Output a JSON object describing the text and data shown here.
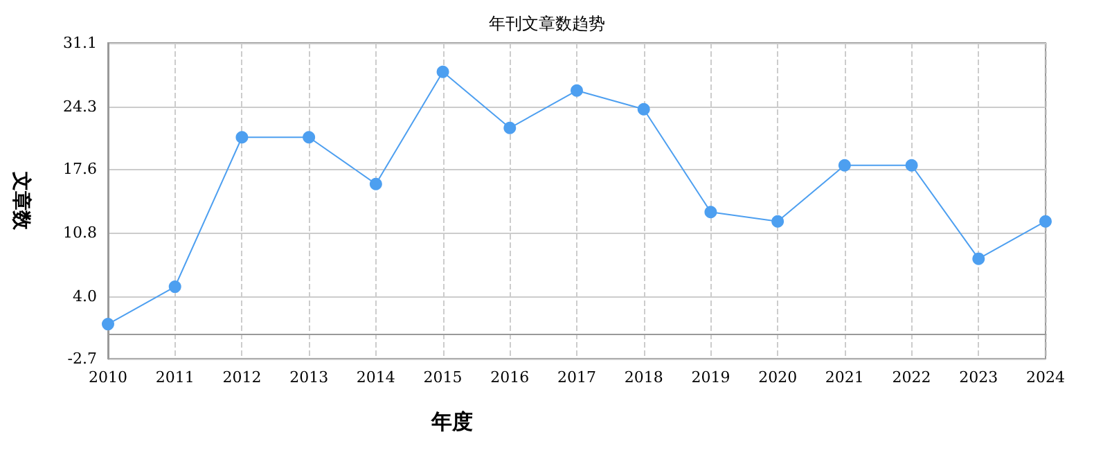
{
  "chart_data": {
    "type": "line",
    "title": "年刊文章数趋势",
    "xlabel": "年度",
    "ylabel": "文章数",
    "categories": [
      "2010",
      "2011",
      "2012",
      "2013",
      "2014",
      "2015",
      "2016",
      "2017",
      "2018",
      "2019",
      "2020",
      "2021",
      "2022",
      "2023",
      "2024"
    ],
    "series": [
      {
        "color": "#4d9ff0",
        "values": [
          1,
          5,
          21,
          21,
          16,
          28,
          22,
          26,
          24,
          13,
          12,
          18,
          18,
          8,
          12
        ]
      }
    ],
    "ylim": [
      -2.7,
      31.1
    ],
    "yticks": [
      -2.7,
      {
        "value": 4,
        "label": "4.0"
      },
      10.8,
      17.6,
      24.3,
      31.1
    ],
    "grid": true,
    "marker": "circle",
    "line_style": "solid"
  }
}
